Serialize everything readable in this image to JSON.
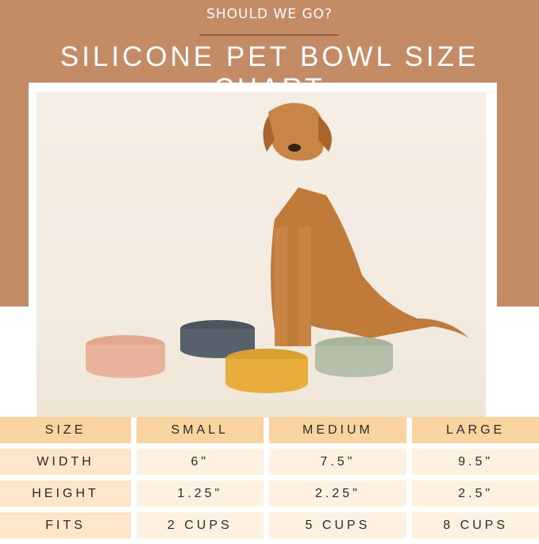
{
  "header": {
    "subtitle": "SHOULD WE GO?",
    "title": "SILICONE PET BOWL SIZE CHART"
  },
  "colors": {
    "brand": "#c48c66",
    "header_cell": "#f9d4a0",
    "row_label_cell": "#fde6c9",
    "value_cell": "#fdf1e2"
  },
  "photo": {
    "description_icons": [
      "golden-retriever",
      "bowl-pink",
      "bowl-navy",
      "bowl-yellow",
      "bowl-sage"
    ]
  },
  "table": {
    "headers": [
      "SIZE",
      "SMALL",
      "MEDIUM",
      "LARGE"
    ],
    "rows": [
      {
        "label": "WIDTH",
        "values": [
          "6\"",
          "7.5\"",
          "9.5\""
        ]
      },
      {
        "label": "HEIGHT",
        "values": [
          "1.25\"",
          "2.25\"",
          "2.5\""
        ]
      },
      {
        "label": "FITS",
        "values": [
          "2 CUPS",
          "5 CUPS",
          "8 CUPS"
        ]
      }
    ]
  }
}
